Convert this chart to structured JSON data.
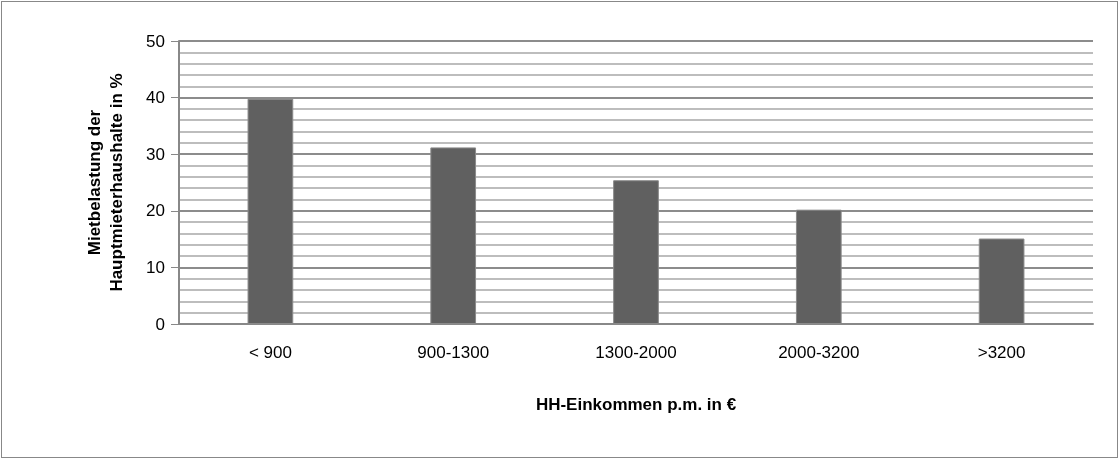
{
  "chart_data": {
    "type": "bar",
    "xlabel": "HH-Einkommen p.m. in €",
    "ylabel": "Mietbelastung der\nHauptmieterhaushalte in %",
    "categories": [
      "< 900",
      "900-1300",
      "1300-2000",
      "2000-3200",
      ">3200"
    ],
    "values": [
      39.8,
      31.2,
      25.4,
      20.2,
      15.1
    ],
    "color": "#606060",
    "ylim": [
      0,
      50
    ],
    "yticks": [
      0,
      10,
      20,
      30,
      40,
      50
    ],
    "grid": true
  }
}
